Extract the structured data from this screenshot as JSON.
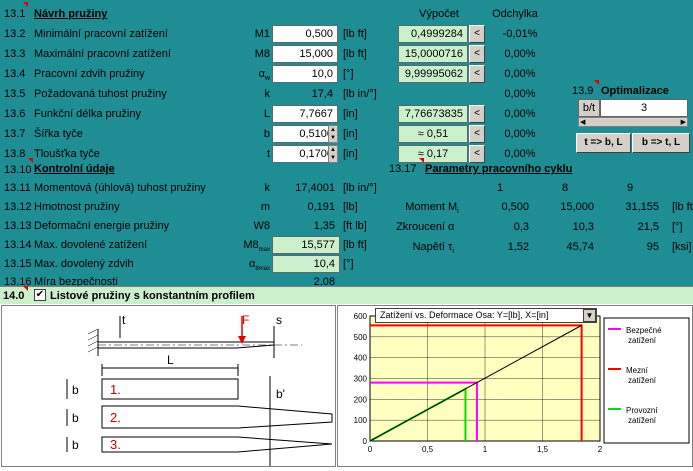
{
  "design": {
    "section_num": "13.1",
    "title": "Návrh pružiny",
    "col_vypocet": "Výpočet",
    "col_odchylka": "Odchylka",
    "rows": [
      {
        "num": "13.2",
        "label": "Minimální pracovní zatížení",
        "sym": "M1",
        "value": "0,500",
        "unit": "[lb ft]",
        "calc": "0,4999284",
        "btn": "<",
        "dev": "-0,01%"
      },
      {
        "num": "13.3",
        "label": "Maximální pracovní zatížení",
        "sym": "M8",
        "value": "15,000",
        "unit": "[lb ft]",
        "calc": "15,0000716",
        "btn": "<",
        "dev": "0,00%"
      },
      {
        "num": "13.4",
        "label": "Pracovní zdvih pružiny",
        "sym": "α",
        "sym_sub": "w",
        "value": "10,0",
        "unit": "[°]",
        "calc": "9,99995062",
        "btn": "<",
        "dev": "0,00%"
      },
      {
        "num": "13.5",
        "label": "Požadovaná tuhost pružiny",
        "sym": "k",
        "value": "17,4",
        "unit": "[lb in/°]",
        "calc": "",
        "btn": "",
        "dev": "0,00%"
      },
      {
        "num": "13.6",
        "label": "Funkční délka pružiny",
        "sym": "L",
        "value": "7,7667",
        "unit": "[in]",
        "calc": "7,76673835",
        "btn": "<",
        "dev": "0,00%"
      },
      {
        "num": "13.7",
        "label": "Šířka tyče",
        "sym": "b",
        "value": "0,5100",
        "unit": "[in]",
        "calc": "≈  0,51",
        "btn": "<",
        "dev": "0,00%"
      },
      {
        "num": "13.8",
        "label": "Tloušťka tyče",
        "sym": "t",
        "value": "0,1700",
        "unit": "[in]",
        "calc": "≈  0,17",
        "btn": "<",
        "dev": "0,00%"
      }
    ]
  },
  "optim": {
    "num": "13.9",
    "title": "Optimalizace",
    "label": "b/t",
    "value": "3",
    "btn1": "t => b, L",
    "btn2": "b => t, L"
  },
  "control": {
    "section_num": "13.10",
    "title": "Kontrolní údaje",
    "rows": [
      {
        "num": "13.11",
        "label": "Momentová (úhlová) tuhost pružiny",
        "sym": "k",
        "value": "17,4001",
        "unit": "[lb in/°]"
      },
      {
        "num": "13.12",
        "label": "Hmotnost pružiny",
        "sym": "m",
        "value": "0,191",
        "unit": "[lb]"
      },
      {
        "num": "13.13",
        "label": "Deformační energie pružiny",
        "sym": "W8",
        "value": "1,35",
        "unit": "[ft lb]"
      },
      {
        "num": "13.14",
        "label": "Max. dovolené zatížení",
        "sym": "M8",
        "sym_sub": "max",
        "value": "15,577",
        "unit": "[lb ft]"
      },
      {
        "num": "13.15",
        "label": "Max. dovolený zdvih",
        "sym": "α",
        "sym_sub": "8max",
        "value": "10,4",
        "unit": "[°]"
      },
      {
        "num": "13.16",
        "label": "Míra bezpečnosti",
        "sym": "",
        "value": "2,08",
        "unit": ""
      }
    ]
  },
  "cycle": {
    "num": "13.17",
    "title": "Parametry pracovního cyklu",
    "cols": [
      "1",
      "8",
      "9"
    ],
    "rows": [
      {
        "label": "Moment",
        "sym": "M",
        "sym_sub": "i",
        "values": [
          "0,500",
          "15,000",
          "31,155"
        ],
        "unit": "[lb ft]"
      },
      {
        "label": "Zkroucení",
        "sym": "α",
        "sym_sub": "",
        "values": [
          "0,3",
          "10,3",
          "21,5"
        ],
        "unit": "[°]"
      },
      {
        "label": "Napětí",
        "sym": "τ",
        "sym_sub": "i",
        "values": [
          "1,52",
          "45,74",
          "95"
        ],
        "unit": "[ksi]"
      }
    ]
  },
  "leaf": {
    "num": "14.0",
    "title": "Listové pružiny s konstantním profilem",
    "checked": "✔"
  },
  "drawing": {
    "t": "t",
    "F": "F",
    "s": "s",
    "L": "L",
    "b": "b",
    "bp": "b'",
    "s1": "1.",
    "s2": "2.",
    "s3": "3."
  },
  "chart_data": {
    "type": "line",
    "title": "Zatížení vs. Deformace   Osa: Y=[lb], X=[in]",
    "xlim": [
      0,
      2
    ],
    "ylim": [
      0,
      600
    ],
    "xticks": [
      "0",
      "0,5",
      "1",
      "1,5",
      "2"
    ],
    "yticks": [
      "0",
      "100",
      "200",
      "300",
      "400",
      "500",
      "600"
    ],
    "grid": true,
    "legend": "right",
    "series": [
      {
        "name": "Bezpečné zatížení",
        "color": "#ff00ff",
        "points": [
          [
            0,
            280
          ],
          [
            0.93,
            280
          ],
          [
            0.93,
            0
          ]
        ]
      },
      {
        "name": "Mezní zatížení",
        "color": "#ff0000",
        "points": [
          [
            0,
            555
          ],
          [
            1.84,
            555
          ],
          [
            1.84,
            0
          ]
        ]
      },
      {
        "name": "Provozní zatížení",
        "color": "#00e000",
        "points": [
          [
            0,
            0
          ],
          [
            0.83,
            250
          ],
          [
            0.83,
            0
          ]
        ]
      },
      {
        "name": "",
        "color": "#000000",
        "points": [
          [
            0,
            0
          ],
          [
            1.84,
            555
          ]
        ]
      }
    ]
  }
}
